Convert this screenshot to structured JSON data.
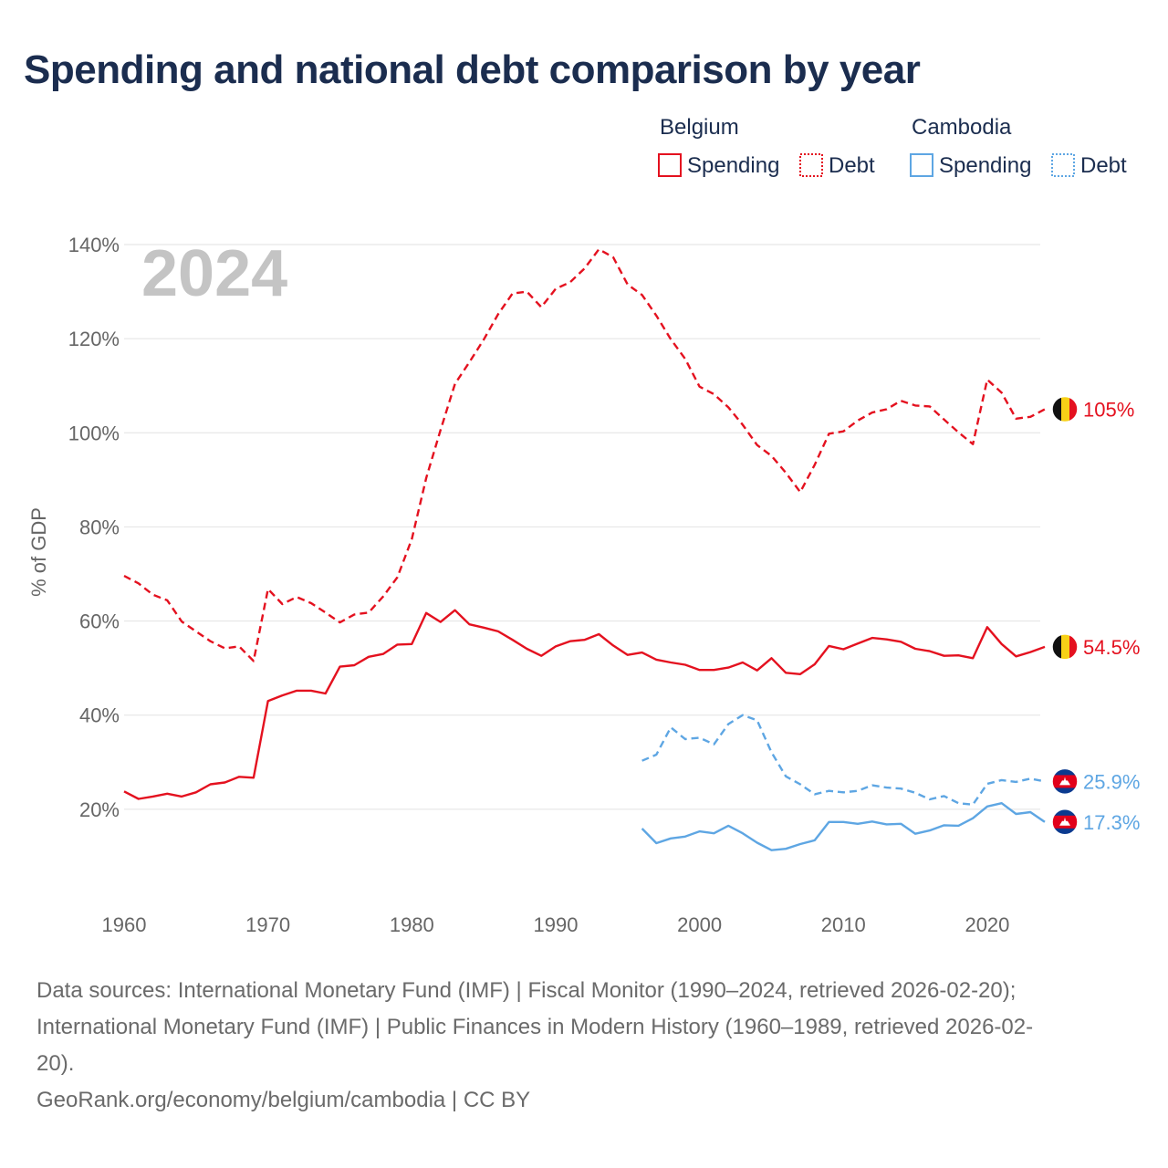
{
  "title": "Spending and national debt comparison by year",
  "chart_data": {
    "type": "line",
    "title": "Spending and national debt comparison by year",
    "ylabel": "% of GDP",
    "xlabel": "",
    "xlim": [
      1960,
      2024
    ],
    "ylim": [
      0,
      140
    ],
    "x_ticks": [
      1960,
      1970,
      1980,
      1990,
      2000,
      2010,
      2020
    ],
    "y_ticks": [
      20,
      40,
      60,
      80,
      100,
      120,
      140
    ],
    "y_tick_labels": [
      "20%",
      "40%",
      "60%",
      "80%",
      "100%",
      "120%",
      "140%"
    ],
    "x_tick_labels": [
      "1960",
      "1970",
      "1980",
      "1990",
      "2000",
      "2010",
      "2020"
    ],
    "year_label": "2024",
    "grid": true,
    "legend": {
      "position": "top-right",
      "groups": [
        {
          "country": "Belgium",
          "color": "#e4111f",
          "items": [
            "Spending",
            "Debt"
          ]
        },
        {
          "country": "Cambodia",
          "color": "#5ea6e3",
          "items": [
            "Spending",
            "Debt"
          ]
        }
      ]
    },
    "series": [
      {
        "name": "Belgium Spending",
        "country": "Belgium",
        "kind": "spending",
        "color": "#e4111f",
        "dash": "solid",
        "end_label": "54.5%",
        "flag": "belgium-flag",
        "x": [
          1960,
          1961,
          1962,
          1963,
          1964,
          1965,
          1966,
          1967,
          1968,
          1969,
          1970,
          1971,
          1972,
          1973,
          1974,
          1975,
          1976,
          1977,
          1978,
          1979,
          1980,
          1981,
          1982,
          1983,
          1984,
          1985,
          1986,
          1987,
          1988,
          1989,
          1990,
          1991,
          1992,
          1993,
          1994,
          1995,
          1996,
          1997,
          1998,
          1999,
          2000,
          2001,
          2002,
          2003,
          2004,
          2005,
          2006,
          2007,
          2008,
          2009,
          2010,
          2011,
          2012,
          2013,
          2014,
          2015,
          2016,
          2017,
          2018,
          2019,
          2020,
          2021,
          2022,
          2023,
          2024
        ],
        "values": [
          23.8,
          22.2,
          22.7,
          23.3,
          22.7,
          23.6,
          25.3,
          25.7,
          26.9,
          26.7,
          43.0,
          44.2,
          45.2,
          45.2,
          44.6,
          50.3,
          50.6,
          52.4,
          53.0,
          55.0,
          55.1,
          61.7,
          59.8,
          62.3,
          59.3,
          58.6,
          57.8,
          56.0,
          54.1,
          52.6,
          54.6,
          55.7,
          56.0,
          57.2,
          54.8,
          52.8,
          53.3,
          51.8,
          51.2,
          50.7,
          49.6,
          49.6,
          50.1,
          51.2,
          49.5,
          52.1,
          49.0,
          48.7,
          50.8,
          54.7,
          54.0,
          55.2,
          56.4,
          56.1,
          55.6,
          54.1,
          53.6,
          52.6,
          52.7,
          52.1,
          58.7,
          55.1,
          52.5,
          53.4,
          54.5
        ]
      },
      {
        "name": "Belgium Debt",
        "country": "Belgium",
        "kind": "debt",
        "color": "#e4111f",
        "dash": "dashed",
        "end_label": "105%",
        "flag": "belgium-flag",
        "x": [
          1960,
          1961,
          1962,
          1963,
          1964,
          1965,
          1966,
          1967,
          1968,
          1969,
          1970,
          1971,
          1972,
          1973,
          1974,
          1975,
          1976,
          1977,
          1978,
          1979,
          1980,
          1981,
          1982,
          1983,
          1984,
          1985,
          1986,
          1987,
          1988,
          1989,
          1990,
          1991,
          1992,
          1993,
          1994,
          1995,
          1996,
          1997,
          1998,
          1999,
          2000,
          2001,
          2002,
          2003,
          2004,
          2005,
          2006,
          2007,
          2008,
          2009,
          2010,
          2011,
          2012,
          2013,
          2014,
          2015,
          2016,
          2017,
          2018,
          2019,
          2020,
          2021,
          2022,
          2023,
          2024
        ],
        "values": [
          69.6,
          68.0,
          65.6,
          64.4,
          59.9,
          57.8,
          55.7,
          54.2,
          54.6,
          51.5,
          66.8,
          63.6,
          65.1,
          63.8,
          61.8,
          59.7,
          61.4,
          61.8,
          65.2,
          69.3,
          77.4,
          90.4,
          100.6,
          110.4,
          115.0,
          119.8,
          125.2,
          129.6,
          130.0,
          126.7,
          130.6,
          132.0,
          134.9,
          139.0,
          137.3,
          131.5,
          129.3,
          124.9,
          119.9,
          115.7,
          109.8,
          108.2,
          105.4,
          101.7,
          97.4,
          95.1,
          91.5,
          87.4,
          93.2,
          99.8,
          100.3,
          102.6,
          104.3,
          105.0,
          106.8,
          105.8,
          105.6,
          102.8,
          100.1,
          97.6,
          111.3,
          108.5,
          103.0,
          103.4,
          105.0
        ]
      },
      {
        "name": "Cambodia Spending",
        "country": "Cambodia",
        "kind": "spending",
        "color": "#5ea6e3",
        "dash": "solid",
        "end_label": "17.3%",
        "flag": "cambodia-flag",
        "x": [
          1996,
          1997,
          1998,
          1999,
          2000,
          2001,
          2002,
          2003,
          2004,
          2005,
          2006,
          2007,
          2008,
          2009,
          2010,
          2011,
          2012,
          2013,
          2014,
          2015,
          2016,
          2017,
          2018,
          2019,
          2020,
          2021,
          2022,
          2023,
          2024
        ],
        "values": [
          15.9,
          12.8,
          13.8,
          14.2,
          15.3,
          14.9,
          16.5,
          14.9,
          12.9,
          11.3,
          11.6,
          12.6,
          13.4,
          17.3,
          17.3,
          16.9,
          17.4,
          16.8,
          16.9,
          14.8,
          15.5,
          16.6,
          16.5,
          18.1,
          20.6,
          21.3,
          19.0,
          19.4,
          17.3
        ]
      },
      {
        "name": "Cambodia Debt",
        "country": "Cambodia",
        "kind": "debt",
        "color": "#5ea6e3",
        "dash": "dashed",
        "end_label": "25.9%",
        "flag": "cambodia-flag",
        "x": [
          1996,
          1997,
          1998,
          1999,
          2000,
          2001,
          2002,
          2003,
          2004,
          2005,
          2006,
          2007,
          2008,
          2009,
          2010,
          2011,
          2012,
          2013,
          2014,
          2015,
          2016,
          2017,
          2018,
          2019,
          2020,
          2021,
          2022,
          2023,
          2024
        ],
        "values": [
          30.3,
          31.6,
          37.4,
          34.9,
          35.2,
          33.8,
          38.1,
          40.0,
          38.9,
          32.1,
          27.0,
          25.3,
          23.2,
          23.9,
          23.6,
          23.9,
          25.1,
          24.6,
          24.4,
          23.5,
          22.1,
          22.8,
          21.3,
          21.0,
          25.4,
          26.2,
          25.8,
          26.5,
          25.9
        ]
      }
    ]
  },
  "footer": {
    "sources_line1": "Data sources: International Monetary Fund (IMF) | Fiscal Monitor (1990–2024, retrieved 2026-02-20);",
    "sources_line2": "International Monetary Fund (IMF) | Public Finances in Modern History (1960–1989, retrieved 2026-02-",
    "sources_line3": "20).",
    "credit": "GeoRank.org/economy/belgium/cambodia | CC BY"
  }
}
